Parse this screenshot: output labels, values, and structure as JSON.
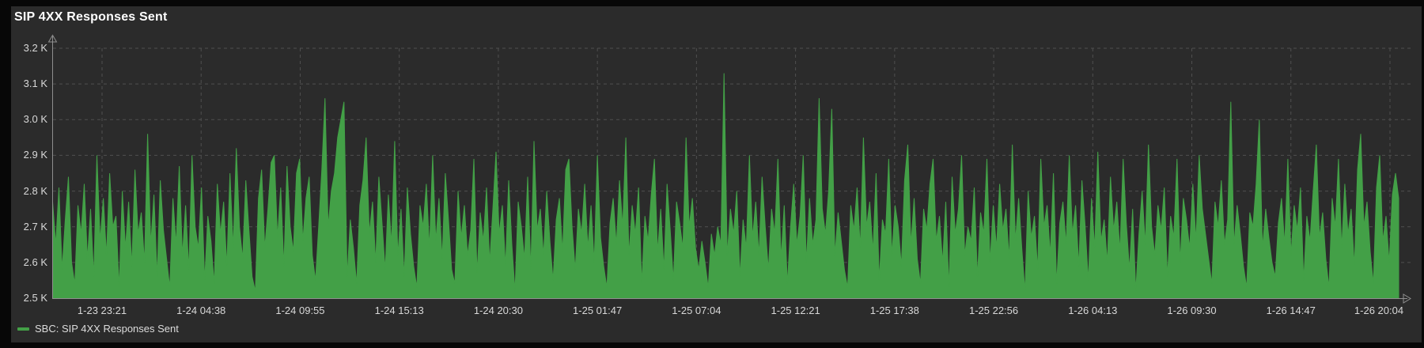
{
  "panel": {
    "title": "SIP 4XX Responses Sent"
  },
  "legend": {
    "series_label": "SBC: SIP 4XX Responses Sent"
  },
  "colors": {
    "outer_background": "#070707",
    "panel_background": "#2b2b2b",
    "grid": "#4f4f4f",
    "axis": "#8f8f8f",
    "tick_text": "#d8d8d8",
    "title_text": "#ffffff",
    "series_green": "#43a047"
  },
  "chart_data": {
    "type": "area",
    "title": "SIP 4XX Responses Sent",
    "series_name": "SBC: SIP 4XX Responses Sent",
    "xlabel": "",
    "ylabel": "",
    "ylim": [
      2500,
      3200
    ],
    "grid": "dashed",
    "legend_position": "bottom-left",
    "y_ticks": [
      {
        "label": "3.2 K",
        "value": 3200
      },
      {
        "label": "3.1 K",
        "value": 3100
      },
      {
        "label": "3.0 K",
        "value": 3000
      },
      {
        "label": "2.9 K",
        "value": 2900
      },
      {
        "label": "2.8 K",
        "value": 2800
      },
      {
        "label": "2.7 K",
        "value": 2700
      },
      {
        "label": "2.6 K",
        "value": 2600
      },
      {
        "label": "2.5 K",
        "value": 2500
      }
    ],
    "x_ticks": [
      "1-23 23:21",
      "1-24 04:38",
      "1-24 09:55",
      "1-24 15:13",
      "1-24 20:30",
      "1-25 01:47",
      "1-25 07:04",
      "1-25 12:21",
      "1-25 17:38",
      "1-25 22:56",
      "1-26 04:13",
      "1-26 09:30",
      "1-26 14:47",
      "1-26 20:04"
    ],
    "values": [
      2770,
      2650,
      2810,
      2580,
      2720,
      2840,
      2600,
      2540,
      2760,
      2680,
      2820,
      2610,
      2750,
      2560,
      2900,
      2660,
      2780,
      2620,
      2850,
      2700,
      2730,
      2530,
      2800,
      2640,
      2770,
      2590,
      2860,
      2680,
      2740,
      2600,
      2960,
      2650,
      2790,
      2560,
      2830,
      2690,
      2610,
      2530,
      2780,
      2650,
      2870,
      2620,
      2760,
      2580,
      2900,
      2700,
      2640,
      2810,
      2550,
      2730,
      2660,
      2540,
      2820,
      2680,
      2770,
      2590,
      2850,
      2640,
      2920,
      2700,
      2610,
      2830,
      2690,
      2560,
      2520,
      2780,
      2860,
      2640,
      2750,
      2880,
      2900,
      2670,
      2810,
      2590,
      2870,
      2700,
      2630,
      2850,
      2890,
      2660,
      2780,
      2840,
      2620,
      2550,
      2700,
      2860,
      3060,
      2700,
      2800,
      2850,
      2950,
      3000,
      3050,
      2560,
      2720,
      2640,
      2540,
      2760,
      2830,
      2950,
      2680,
      2770,
      2600,
      2840,
      2710,
      2580,
      2790,
      2650,
      2940,
      2620,
      2750,
      2560,
      2810,
      2680,
      2590,
      2530,
      2760,
      2700,
      2820,
      2640,
      2900,
      2660,
      2780,
      2610,
      2850,
      2720,
      2580,
      2540,
      2800,
      2670,
      2760,
      2620,
      2690,
      2890,
      2570,
      2740,
      2660,
      2810,
      2600,
      2750,
      2910,
      2680,
      2760,
      2590,
      2830,
      2650,
      2520,
      2770,
      2700,
      2610,
      2840,
      2580,
      2940,
      2690,
      2750,
      2620,
      2800,
      2660,
      2550,
      2720,
      2780,
      2630,
      2860,
      2890,
      2700,
      2580,
      2750,
      2680,
      2820,
      2640,
      2760,
      2600,
      2900,
      2670,
      2590,
      2530,
      2710,
      2780,
      2650,
      2830,
      2700,
      2950,
      2620,
      2760,
      2680,
      2810,
      2540,
      2730,
      2660,
      2790,
      2890,
      2630,
      2750,
      2580,
      2820,
      2690,
      2550,
      2770,
      2710,
      2640,
      2950,
      2700,
      2780,
      2640,
      2580,
      2660,
      2600,
      2530,
      2680,
      2620,
      2700,
      2650,
      3130,
      2620,
      2750,
      2680,
      2800,
      2560,
      2720,
      2640,
      2900,
      2670,
      2770,
      2620,
      2840,
      2700,
      2580,
      2750,
      2680,
      2890,
      2610,
      2760,
      2540,
      2700,
      2820,
      2650,
      2730,
      2900,
      2600,
      2780,
      2650,
      2720,
      3060,
      2750,
      2680,
      2800,
      3030,
      2620,
      2740,
      2660,
      2580,
      2530,
      2760,
      2690,
      2810,
      2640,
      2950,
      2700,
      2770,
      2630,
      2850,
      2550,
      2720,
      2680,
      2890,
      2620,
      2760,
      2700,
      2590,
      2830,
      2930,
      2650,
      2780,
      2610,
      2540,
      2750,
      2690,
      2820,
      2890,
      2660,
      2730,
      2600,
      2770,
      2530,
      2840,
      2680,
      2750,
      2900,
      2620,
      2700,
      2660,
      2810,
      2560,
      2740,
      2680,
      2890,
      2600,
      2760,
      2640,
      2820,
      2690,
      2750,
      2610,
      2930,
      2660,
      2780,
      2640,
      2520,
      2800,
      2670,
      2730,
      2580,
      2890,
      2700,
      2760,
      2620,
      2850,
      2540,
      2710,
      2770,
      2650,
      2900,
      2680,
      2760,
      2590,
      2830,
      2700,
      2550,
      2780,
      2640,
      2910,
      2660,
      2720,
      2600,
      2840,
      2690,
      2770,
      2630,
      2890,
      2710,
      2580,
      2750,
      2520,
      2680,
      2800,
      2650,
      2930,
      2700,
      2620,
      2760,
      2690,
      2810,
      2560,
      2730,
      2670,
      2890,
      2600,
      2780,
      2720,
      2640,
      2820,
      2660,
      2900,
      2750,
      2680,
      2610,
      2540,
      2770,
      2700,
      2830,
      2650,
      2720,
      3050,
      2650,
      2760,
      2680,
      2590,
      2530,
      2740,
      2700,
      2820,
      3000,
      2640,
      2750,
      2670,
      2600,
      2560,
      2710,
      2780,
      2650,
      2890,
      2620,
      2760,
      2690,
      2810,
      2550,
      2730,
      2660,
      2800,
      2930,
      2670,
      2740,
      2610,
      2530,
      2780,
      2700,
      2890,
      2640,
      2820,
      2680,
      2750,
      2590,
      2860,
      2960,
      2700,
      2770,
      2630,
      2540,
      2810,
      2900,
      2660,
      2730,
      2600,
      2790,
      2850,
      2780
    ]
  }
}
